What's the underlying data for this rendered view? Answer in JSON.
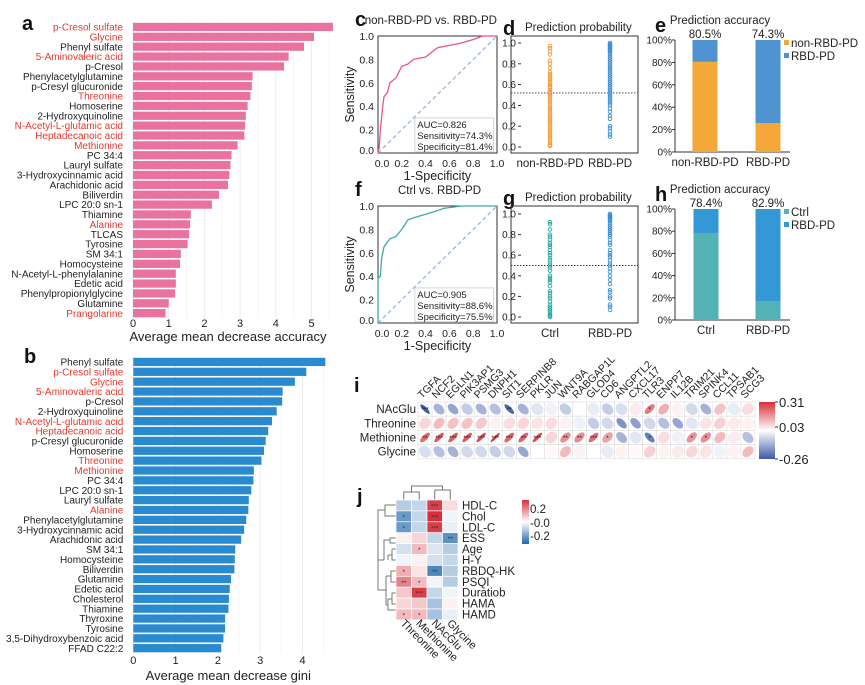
{
  "chart_data": [
    {
      "panel_label": "a",
      "type": "bar",
      "orientation": "horizontal",
      "xlabel": "Average mean decrease accuracy",
      "xlim": [
        0,
        5.7
      ],
      "xticks": [
        "0",
        "1",
        "2",
        "3",
        "4",
        "5"
      ],
      "grid": true,
      "bar_color": "#e9739e",
      "highlight_color": "#e8372c",
      "categories": [
        "p-Cresol sulfate",
        "Glycine",
        "Phenyl sulfate",
        "5-Aminovaleric acid",
        "p-Cresol",
        "Phenylacetylglutamine",
        "p-Cresyl glucuronide",
        "Threonine",
        "Homoserine",
        "2-Hydroxyquinoline",
        "N-Acetyl-L-glutamic acid",
        "Heptadecanoic acid",
        "Methionine",
        "PC 34:4",
        "Lauryl sulfate",
        "3-Hydroxycinnamic acid",
        "Arachidonic acid",
        "Biliverdin",
        "LPC 20:0 sn-1",
        "Thiamine",
        "Alanine",
        "TLCAS",
        "Tyrosine",
        "SM 34:1",
        "Homocysteine",
        "N-Acetyl-L-phenylalanine",
        "Edetic acid",
        "Phenylpropionylglycine",
        "Glutamine",
        "Prangolarine"
      ],
      "values": [
        5.6,
        5.07,
        4.79,
        4.36,
        4.23,
        3.35,
        3.33,
        3.29,
        3.21,
        3.16,
        3.14,
        3.12,
        2.93,
        2.76,
        2.73,
        2.7,
        2.66,
        2.41,
        2.21,
        1.62,
        1.6,
        1.57,
        1.53,
        1.34,
        1.32,
        1.2,
        1.2,
        1.18,
        1.0,
        0.91
      ],
      "highlighted": [
        "p-Cresol sulfate",
        "Glycine",
        "5-Aminovaleric acid",
        "Threonine",
        "N-Acetyl-L-glutamic acid",
        "Heptadecanoic acid",
        "Methionine",
        "Alanine",
        "Prangolarine"
      ]
    },
    {
      "panel_label": "b",
      "type": "bar",
      "orientation": "horizontal",
      "xlabel": "Average mean decrease gini",
      "xlim": [
        0,
        4.65
      ],
      "xticks": [
        "0",
        "1",
        "2",
        "3",
        "4"
      ],
      "grid": true,
      "bar_color": "#2a8ad0",
      "highlight_color": "#e8372c",
      "categories": [
        "Phenyl sulfate",
        "p-Cresol sulfate",
        "Glycine",
        "5-Aminovaleric acid",
        "p-Cresol",
        "2-Hydroxyquinoline",
        "N-Acetyl-L-glutamic acid",
        "Heptadecanoic acid",
        "p-Cresyl glucuronide",
        "Homoserine",
        "Threonine",
        "Methionine",
        "PC 34:4",
        "LPC 20:0 sn-1",
        "Lauryl sulfate",
        "Alanine",
        "Phenylacetylglutamine",
        "3-Hydroxycinnamic acid",
        "Arachidonic acid",
        "SM 34:1",
        "Homocysteine",
        "Biliverdin",
        "Glutamine",
        "Edetic acid",
        "Cholesterol",
        "Thiamine",
        "Thyroxine",
        "Tyrosine",
        "3,5-Dihydroxybenzoic acid",
        "FFAD C22:2"
      ],
      "values": [
        4.54,
        4.09,
        3.82,
        3.53,
        3.52,
        3.39,
        3.28,
        3.19,
        3.13,
        3.09,
        3.03,
        2.85,
        2.84,
        2.79,
        2.73,
        2.72,
        2.67,
        2.62,
        2.55,
        2.41,
        2.4,
        2.39,
        2.31,
        2.28,
        2.26,
        2.25,
        2.17,
        2.17,
        2.13,
        2.08
      ],
      "highlighted": [
        "p-Cresol sulfate",
        "Glycine",
        "5-Aminovaleric acid",
        "N-Acetyl-L-glutamic acid",
        "Heptadecanoic acid",
        "Threonine",
        "Methionine",
        "Alanine"
      ]
    },
    {
      "panel_label": "c",
      "type": "line",
      "title": "non-RBD-PD vs. RBD-PD",
      "xlabel": "1-Specificity",
      "ylabel": "Sensitivity",
      "xlim": [
        0,
        1
      ],
      "ylim": [
        0,
        1
      ],
      "ticks": [
        "0.0",
        "0.2",
        "0.4",
        "0.6",
        "0.8",
        "1.0"
      ],
      "line_color": "#e8558a",
      "reference_color": "#8fb0e0",
      "roc": [
        [
          0,
          0
        ],
        [
          0.01,
          0.05
        ],
        [
          0.02,
          0.2
        ],
        [
          0.04,
          0.4
        ],
        [
          0.05,
          0.48
        ],
        [
          0.08,
          0.52
        ],
        [
          0.1,
          0.6
        ],
        [
          0.15,
          0.64
        ],
        [
          0.18,
          0.7
        ],
        [
          0.2,
          0.74
        ],
        [
          0.25,
          0.76
        ],
        [
          0.3,
          0.8
        ],
        [
          0.4,
          0.82
        ],
        [
          0.45,
          0.86
        ],
        [
          0.5,
          0.9
        ],
        [
          0.6,
          0.92
        ],
        [
          0.7,
          0.94
        ],
        [
          0.8,
          0.97
        ],
        [
          0.88,
          1.0
        ],
        [
          1,
          1
        ]
      ],
      "annotation": [
        "AUC=0.826",
        "Sensitivity=74.3%",
        "Specificity=81.4%"
      ]
    },
    {
      "panel_label": "d",
      "type": "scatter",
      "title": "Prediction probability",
      "ylim": [
        0,
        1
      ],
      "yticks": [
        "0.0",
        "0.2",
        "0.4",
        "0.6",
        "0.8",
        "1.0"
      ],
      "threshold": 0.52,
      "categories": [
        "non-RBD-PD",
        "RBD-PD"
      ],
      "colors": [
        "#f29a3a",
        "#3a8fd5"
      ],
      "series": [
        {
          "values": [
            0.97,
            0.95,
            0.92,
            0.89,
            0.83,
            0.8,
            0.76,
            0.72,
            0.7,
            0.68,
            0.66,
            0.64,
            0.62,
            0.6,
            0.58,
            0.57,
            0.55,
            0.53,
            0.52,
            0.5,
            0.48,
            0.46,
            0.44,
            0.42,
            0.4,
            0.38,
            0.36,
            0.34,
            0.32,
            0.3,
            0.28,
            0.26,
            0.24,
            0.22,
            0.2,
            0.18,
            0.16,
            0.14,
            0.12,
            0.1,
            0.08,
            0.06,
            0.04,
            0.02,
            0.01
          ]
        },
        {
          "values": [
            1.0,
            0.99,
            0.98,
            0.97,
            0.96,
            0.95,
            0.94,
            0.93,
            0.92,
            0.9,
            0.88,
            0.86,
            0.84,
            0.82,
            0.8,
            0.78,
            0.76,
            0.74,
            0.72,
            0.7,
            0.68,
            0.66,
            0.64,
            0.62,
            0.6,
            0.58,
            0.56,
            0.54,
            0.52,
            0.5,
            0.48,
            0.46,
            0.44,
            0.42,
            0.4,
            0.37,
            0.34,
            0.3,
            0.27,
            0.2,
            0.18,
            0.15,
            0.12,
            0.1
          ]
        }
      ]
    },
    {
      "panel_label": "e",
      "type": "bar",
      "stacked": true,
      "title": "Prediction accuracy",
      "yticks": [
        "0%",
        "20%",
        "40%",
        "60%",
        "80%",
        "100%"
      ],
      "categories": [
        "non-RBD-PD",
        "RBD-PD"
      ],
      "top_labels": [
        "80.5%",
        "74.3%"
      ],
      "series": [
        {
          "name": "non-RBD-PD",
          "color": "#f5a83a",
          "values": [
            80.5,
            25.7
          ]
        },
        {
          "name": "RBD-PD",
          "color": "#4f94d0",
          "values": [
            19.5,
            74.3
          ]
        }
      ],
      "legend": "top-right"
    },
    {
      "panel_label": "f",
      "type": "line",
      "title": "Ctrl vs. RBD-PD",
      "xlabel": "1-Specificity",
      "ylabel": "Sensitivity",
      "xlim": [
        0,
        1
      ],
      "ylim": [
        0,
        1
      ],
      "ticks": [
        "0.0",
        "0.2",
        "0.4",
        "0.6",
        "0.8",
        "1.0"
      ],
      "line_color": "#3aaca6",
      "reference_color": "#8fb0e0",
      "roc": [
        [
          0,
          0
        ],
        [
          0,
          0.38
        ],
        [
          0.02,
          0.4
        ],
        [
          0.03,
          0.55
        ],
        [
          0.05,
          0.65
        ],
        [
          0.1,
          0.72
        ],
        [
          0.15,
          0.74
        ],
        [
          0.2,
          0.8
        ],
        [
          0.25,
          0.88
        ],
        [
          0.3,
          0.9
        ],
        [
          0.4,
          0.93
        ],
        [
          0.5,
          0.96
        ],
        [
          0.55,
          0.98
        ],
        [
          0.7,
          1
        ],
        [
          1,
          1
        ]
      ],
      "annotation": [
        "AUC=0.905",
        "Sensitivity=88.6%",
        "Specificity=75.5%"
      ]
    },
    {
      "panel_label": "g",
      "type": "scatter",
      "title": "Prediction probability",
      "ylim": [
        0,
        1
      ],
      "yticks": [
        "0.0",
        "0.2",
        "0.4",
        "0.6",
        "0.8",
        "1.0"
      ],
      "threshold": 0.5,
      "categories": [
        "Ctrl",
        "RBD-PD"
      ],
      "colors": [
        "#2aa5a0",
        "#3a8fd5"
      ],
      "series": [
        {
          "values": [
            0.92,
            0.9,
            0.85,
            0.8,
            0.78,
            0.75,
            0.72,
            0.7,
            0.68,
            0.65,
            0.62,
            0.6,
            0.57,
            0.55,
            0.52,
            0.5,
            0.48,
            0.45,
            0.4,
            0.38,
            0.36,
            0.34,
            0.3,
            0.25,
            0.23,
            0.2,
            0.18,
            0.15,
            0.12,
            0.1,
            0.08,
            0.06,
            0.04,
            0.02,
            0.01,
            0.0
          ]
        },
        {
          "values": [
            1.0,
            0.99,
            0.98,
            0.97,
            0.96,
            0.95,
            0.94,
            0.92,
            0.9,
            0.88,
            0.86,
            0.84,
            0.82,
            0.8,
            0.78,
            0.75,
            0.72,
            0.7,
            0.65,
            0.62,
            0.6,
            0.58,
            0.55,
            0.52,
            0.5,
            0.47,
            0.44,
            0.4,
            0.36,
            0.32,
            0.26,
            0.24,
            0.2,
            0.18,
            0.12,
            0.1,
            0.07
          ]
        }
      ]
    },
    {
      "panel_label": "h",
      "type": "bar",
      "stacked": true,
      "title": "Prediction accuracy",
      "yticks": [
        "0%",
        "20%",
        "40%",
        "60%",
        "80%",
        "100%"
      ],
      "categories": [
        "Ctrl",
        "RBD-PD"
      ],
      "top_labels": [
        "78.4%",
        "82.9%"
      ],
      "series": [
        {
          "name": "Ctrl",
          "color": "#52b2b6",
          "values": [
            78.4,
            17.1
          ]
        },
        {
          "name": "RBD-PD",
          "color": "#3598d6",
          "values": [
            21.6,
            82.9
          ]
        }
      ],
      "legend": "top-right"
    },
    {
      "panel_label": "i",
      "type": "heatmap",
      "rows": [
        "NAcGlu",
        "Threonine",
        "Methionine",
        "Glycine"
      ],
      "columns": [
        "TGFA",
        "NCF2",
        "EGLN1",
        "PIK3AP1",
        "PSMG3",
        "DNPH1",
        "SIT1",
        "SERPINB8",
        "PKLR",
        "JUN",
        "WNT9A",
        "RABGAP1L",
        "GLOD4",
        "CD6",
        "ANGPTL2",
        "CXCL17",
        "TLR3",
        "ENPP7",
        "IL12B",
        "TRIM21",
        "SPINK4",
        "CCL11",
        "TPSAB1",
        "SCG3"
      ],
      "values": [
        [
          -0.26,
          -0.12,
          -0.14,
          -0.08,
          -0.12,
          -0.1,
          -0.24,
          -0.12,
          -0.04,
          -0.02,
          -0.08,
          0.0,
          -0.03,
          -0.08,
          -0.05,
          0.03,
          0.2,
          0.12,
          0.02,
          -0.06,
          -0.12,
          0.09,
          -0.03,
          0.05
        ],
        [
          0.06,
          0.1,
          0.09,
          0.09,
          0.08,
          0.02,
          0.05,
          0.06,
          0.04,
          0.05,
          0.02,
          -0.02,
          -0.08,
          -0.06,
          -0.17,
          -0.15,
          -0.06,
          -0.1,
          -0.14,
          -0.04,
          0.04,
          0.07,
          0.03,
          0.02
        ],
        [
          0.22,
          0.25,
          0.24,
          0.25,
          0.27,
          0.3,
          0.23,
          0.23,
          0.27,
          0.06,
          0.17,
          0.17,
          0.22,
          0.14,
          -0.12,
          -0.04,
          -0.2,
          0.05,
          -0.02,
          0.16,
          0.17,
          0.1,
          0.03,
          -0.1
        ],
        [
          -0.05,
          -0.1,
          -0.12,
          -0.06,
          -0.06,
          -0.08,
          -0.06,
          -0.14,
          0.0,
          0.01,
          0.1,
          0.02,
          0.0,
          -0.03,
          0.02,
          0.01,
          0.07,
          0.02,
          0.03,
          0.06,
          0.04,
          -0.02,
          0.02,
          0.1
        ]
      ],
      "significance": [
        [
          "***",
          "",
          "",
          "",
          "",
          "",
          "**",
          "",
          "",
          "",
          "",
          "",
          "",
          "",
          "",
          "",
          "*",
          "",
          "",
          "",
          "",
          "",
          "",
          ""
        ],
        [
          "",
          "",
          "",
          "",
          "",
          "",
          "",
          "",
          "",
          "",
          "",
          "",
          "",
          "",
          "",
          "",
          "",
          "",
          "",
          "",
          "",
          "",
          "",
          ""
        ],
        [
          "**",
          "***",
          "***",
          "***",
          "***",
          "***",
          "***",
          "**",
          "***",
          "",
          "**",
          "**",
          "***",
          "*",
          "",
          "",
          "*",
          "",
          "",
          "*",
          "*",
          "",
          "",
          ""
        ],
        [
          "",
          "",
          "",
          "",
          "",
          "",
          "",
          "",
          "",
          "",
          "",
          "",
          "",
          "",
          "",
          "",
          "",
          "",
          "",
          "",
          "",
          "",
          "",
          ""
        ]
      ],
      "colorbar_labels": [
        "0.31",
        "0.03",
        "-0.26"
      ],
      "vmin": -0.26,
      "vmax": 0.31,
      "colors": {
        "low": "#3b5ba9",
        "mid": "#ffffff",
        "high": "#d7303a"
      }
    },
    {
      "panel_label": "j",
      "type": "heatmap",
      "rows": [
        "HDL-C",
        "Chol",
        "LDL-C",
        "ESS",
        "Age",
        "H-Y",
        "RBDQ-HK",
        "PSQI",
        "Duratiob",
        "HAMA",
        "HAMD"
      ],
      "columns": [
        "Threonine",
        "Methionine",
        "NAcGlu",
        "Glycine"
      ],
      "values": [
        [
          -0.1,
          -0.08,
          0.28,
          0.05
        ],
        [
          -0.2,
          -0.08,
          0.3,
          -0.02
        ],
        [
          -0.2,
          -0.08,
          0.28,
          -0.03
        ],
        [
          0.02,
          0.06,
          -0.08,
          -0.22
        ],
        [
          -0.06,
          0.1,
          -0.05,
          -0.1
        ],
        [
          -0.02,
          0.02,
          -0.06,
          -0.08
        ],
        [
          0.12,
          0.04,
          -0.24,
          -0.1
        ],
        [
          0.18,
          0.1,
          -0.02,
          -0.1
        ],
        [
          0.08,
          0.28,
          -0.08,
          -0.02
        ],
        [
          0.06,
          0.08,
          -0.12,
          0.02
        ],
        [
          0.1,
          0.1,
          -0.12,
          -0.03
        ]
      ],
      "significance": [
        [
          "",
          "",
          "***",
          ""
        ],
        [
          "*",
          "",
          "***",
          ""
        ],
        [
          "*",
          "",
          "***",
          ""
        ],
        [
          "",
          "",
          "",
          "**"
        ],
        [
          "",
          "*",
          "",
          ""
        ],
        [
          "",
          "",
          "",
          ""
        ],
        [
          "*",
          "",
          "**",
          ""
        ],
        [
          "**",
          "*",
          "",
          ""
        ],
        [
          "",
          "***",
          "",
          ""
        ],
        [
          "",
          "",
          "",
          ""
        ],
        [
          "*",
          "*",
          "",
          ""
        ]
      ],
      "colorbar_labels": [
        "0.2",
        "-0.0",
        "-0.2"
      ],
      "vmin": -0.3,
      "vmax": 0.3,
      "colors": {
        "low": "#2166ac",
        "mid": "#ffffff",
        "high": "#d6303c"
      }
    }
  ]
}
